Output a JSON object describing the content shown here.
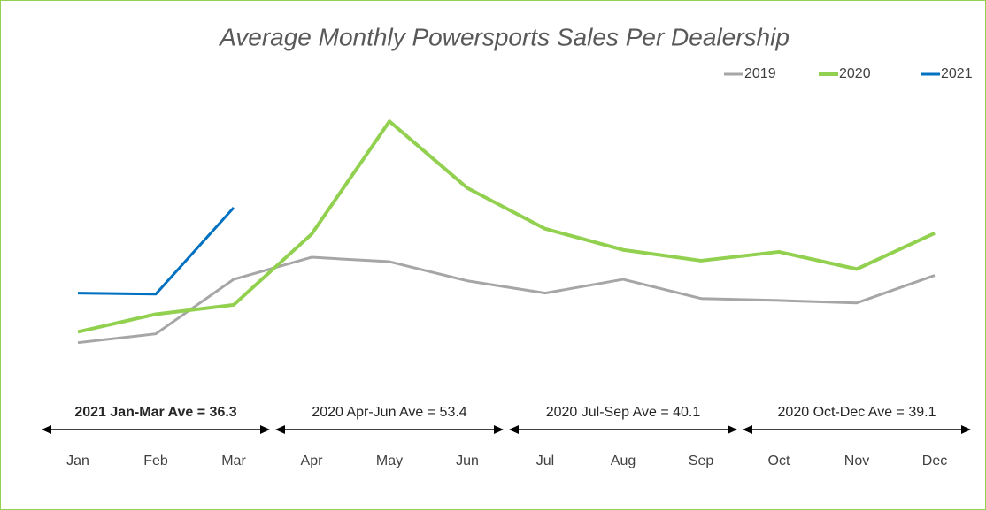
{
  "chart_data": {
    "type": "line",
    "title": "Average Monthly Powersports Sales Per Dealership",
    "categories": [
      "Jan",
      "Feb",
      "Mar",
      "Apr",
      "May",
      "Jun",
      "Jul",
      "Aug",
      "Sep",
      "Oct",
      "Nov",
      "Dec"
    ],
    "series": [
      {
        "name": "2019",
        "color": "#a6a6a6",
        "values": [
          20.5,
          22.3,
          33.4,
          37.9,
          37.0,
          33.1,
          30.6,
          33.4,
          29.5,
          29.1,
          28.6,
          34.2
        ]
      },
      {
        "name": "2020",
        "color": "#92d050",
        "values": [
          22.7,
          26.3,
          28.2,
          42.6,
          65.6,
          52.0,
          43.7,
          39.4,
          37.2,
          39.0,
          35.5,
          42.8
        ]
      },
      {
        "name": "2021",
        "color": "#0070c0",
        "values": [
          30.6,
          30.4,
          48.0,
          null,
          null,
          null,
          null,
          null,
          null,
          null,
          null,
          null
        ]
      }
    ],
    "ylim": [
      10,
      75
    ],
    "annotations": [
      {
        "text": "2021 Jan-Mar Ave = 36.3",
        "color": "#0070c0"
      },
      {
        "text": "2020 Apr-Jun Ave = 53.4",
        "color": "#000000"
      },
      {
        "text": "2020 Jul-Sep Ave = 40.1",
        "color": "#000000"
      },
      {
        "text": "2020 Oct-Dec Ave = 39.1",
        "color": "#000000"
      }
    ]
  }
}
